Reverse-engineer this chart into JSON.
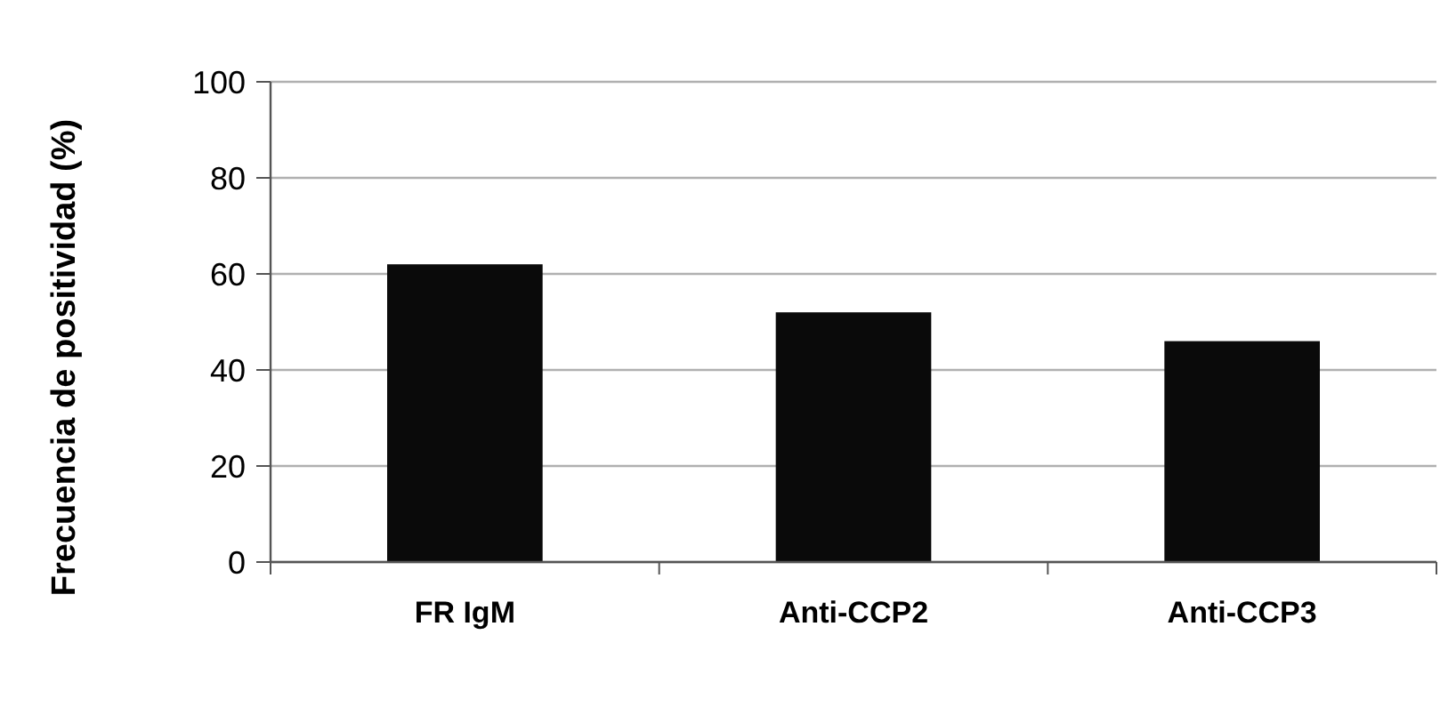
{
  "chart_data": {
    "type": "bar",
    "ylabel": "Frecuencia de positividad (%)",
    "categories": [
      "FR IgM",
      "Anti-CCP2",
      "Anti-CCP3"
    ],
    "values": [
      62,
      52,
      46
    ],
    "color": "#0a0a0a",
    "ylim": [
      0,
      100
    ],
    "yticks": [
      0,
      20,
      40,
      60,
      80,
      100
    ],
    "grid": "y"
  }
}
